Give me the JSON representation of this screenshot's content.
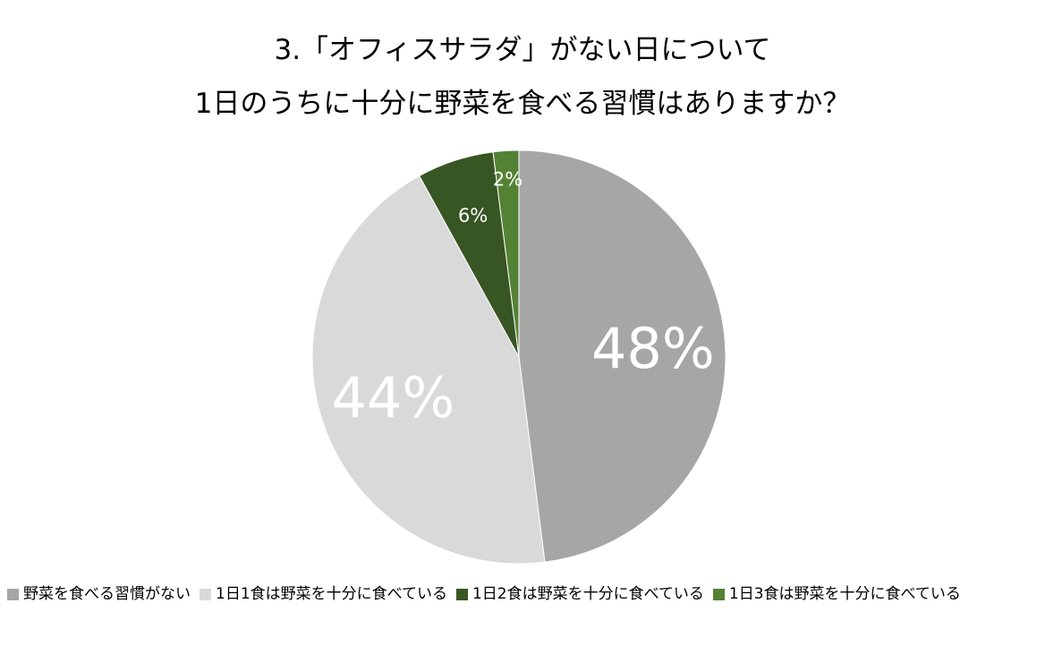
{
  "title_lines": [
    "3.「オフィスサラダ」がない日について",
    "1日のうちに十分に野菜を食べる習慣はありますか？"
  ],
  "chart_data": {
    "type": "pie",
    "title": "3.「オフィスサラダ」がない日について 1日のうちに十分に野菜を食べる習慣はありますか？",
    "categories": [
      "野菜を食べる習慣がない",
      "1日1食は野菜を十分に食べている",
      "1日2食は野菜を十分に食べている",
      "1日3食は野菜を十分に食べている"
    ],
    "values": [
      48,
      44,
      6,
      2
    ],
    "labels": [
      "48%",
      "44%",
      "6%",
      "2%"
    ],
    "colors": [
      "#a6a6a6",
      "#d9d9d9",
      "#375623",
      "#548235"
    ],
    "label_color": "#ffffff",
    "start": "12 o'clock",
    "direction": "clockwise",
    "legend_position": "bottom"
  }
}
